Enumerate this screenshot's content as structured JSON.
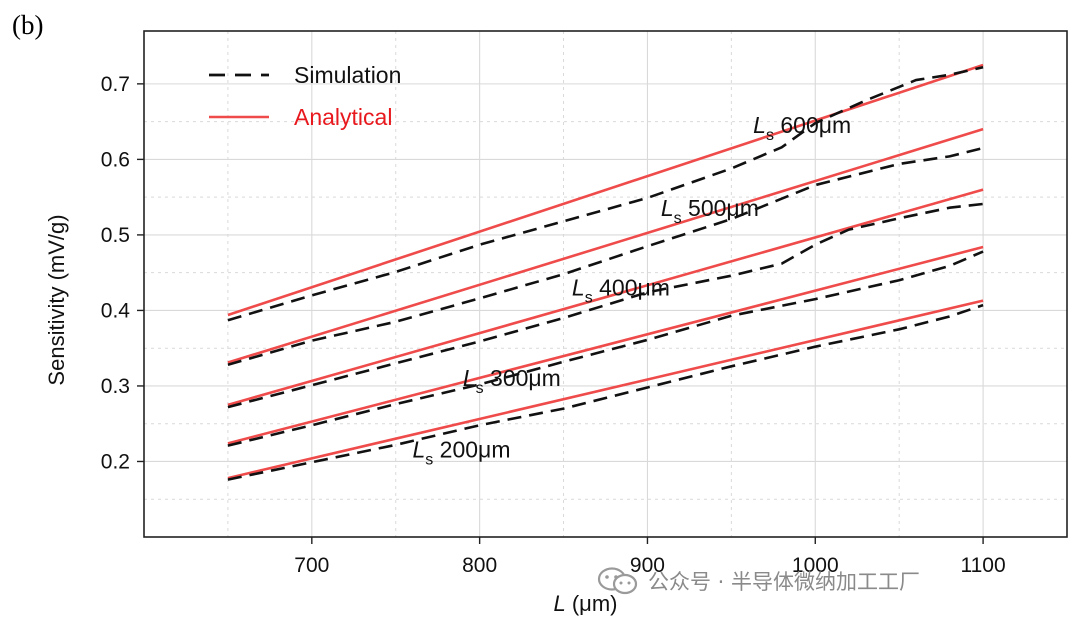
{
  "panel_label": "(b)",
  "watermark": {
    "text": "公众号 · 半导体微纳加工工厂",
    "icon": "wechat-icon"
  },
  "colors": {
    "simulation": "#111111",
    "analytical": "#ef4b4b",
    "analytical_legend": "#e8191e",
    "grid": "#d9d9d9",
    "axis": "#222222"
  },
  "chart_data": {
    "type": "line",
    "title": "",
    "xlabel": "L (μm)",
    "xlabel_var": "L",
    "xlabel_unit": " (μm)",
    "ylabel": "Sensitivity (mV/g)",
    "xlim": [
      600,
      1150
    ],
    "ylim": [
      0.1,
      0.77
    ],
    "xticks": [
      700,
      800,
      900,
      1000,
      1100
    ],
    "yticks": [
      0.2,
      0.3,
      0.4,
      0.5,
      0.6,
      0.7
    ],
    "ytick_labels": [
      "0.2",
      "0.3",
      "0.4",
      "0.5",
      "0.6",
      "0.7"
    ],
    "grid": true,
    "legend": {
      "position": "top-left",
      "entries": [
        {
          "name": "Simulation",
          "style": "dashed"
        },
        {
          "name": "Analytical",
          "style": "solid"
        }
      ]
    },
    "series": [
      {
        "name": "Ls 200μm",
        "label_main": "L",
        "label_sub": "s",
        "label_rest": " 200μm",
        "label_at": [
          760,
          0.205
        ],
        "analytical": {
          "x": [
            650,
            1100
          ],
          "y": [
            0.178,
            0.413
          ]
        },
        "simulation": {
          "x": [
            650,
            700,
            750,
            800,
            850,
            900,
            950,
            1000,
            1050,
            1080,
            1100
          ],
          "y": [
            0.176,
            0.199,
            0.222,
            0.248,
            0.27,
            0.298,
            0.326,
            0.352,
            0.375,
            0.392,
            0.407
          ]
        }
      },
      {
        "name": "Ls 300μm",
        "label_main": "L",
        "label_sub": "s",
        "label_rest": " 300μm",
        "label_at": [
          790,
          0.3
        ],
        "analytical": {
          "x": [
            650,
            1100
          ],
          "y": [
            0.224,
            0.484
          ]
        },
        "simulation": {
          "x": [
            650,
            700,
            750,
            800,
            850,
            900,
            950,
            1000,
            1050,
            1080,
            1100
          ],
          "y": [
            0.221,
            0.248,
            0.276,
            0.302,
            0.332,
            0.361,
            0.393,
            0.415,
            0.44,
            0.459,
            0.478
          ]
        }
      },
      {
        "name": "Ls 400μm",
        "label_main": "L",
        "label_sub": "s",
        "label_rest": " 400μm",
        "label_at": [
          855,
          0.42
        ],
        "analytical": {
          "x": [
            650,
            1100
          ],
          "y": [
            0.275,
            0.56
          ]
        },
        "simulation": {
          "x": [
            650,
            700,
            750,
            800,
            850,
            900,
            950,
            980,
            1000,
            1020,
            1050,
            1080,
            1100
          ],
          "y": [
            0.272,
            0.301,
            0.33,
            0.359,
            0.39,
            0.424,
            0.446,
            0.462,
            0.487,
            0.507,
            0.522,
            0.536,
            0.541
          ]
        }
      },
      {
        "name": "Ls 500μm",
        "label_main": "L",
        "label_sub": "s",
        "label_rest": " 500μm",
        "label_at": [
          908,
          0.525
        ],
        "analytical": {
          "x": [
            650,
            1100
          ],
          "y": [
            0.331,
            0.64
          ]
        },
        "simulation": {
          "x": [
            650,
            700,
            750,
            800,
            850,
            900,
            950,
            1000,
            1050,
            1080,
            1100
          ],
          "y": [
            0.328,
            0.36,
            0.385,
            0.416,
            0.448,
            0.485,
            0.521,
            0.566,
            0.594,
            0.604,
            0.615
          ]
        }
      },
      {
        "name": "Ls 600μm",
        "label_main": "L",
        "label_sub": "s",
        "label_rest": " 600μm",
        "label_at": [
          963,
          0.635
        ],
        "analytical": {
          "x": [
            650,
            1100
          ],
          "y": [
            0.394,
            0.725
          ]
        },
        "simulation": {
          "x": [
            650,
            700,
            750,
            800,
            850,
            900,
            950,
            980,
            1000,
            1030,
            1060,
            1080,
            1100
          ],
          "y": [
            0.387,
            0.42,
            0.451,
            0.487,
            0.518,
            0.549,
            0.588,
            0.616,
            0.648,
            0.678,
            0.705,
            0.712,
            0.722
          ]
        }
      }
    ]
  }
}
